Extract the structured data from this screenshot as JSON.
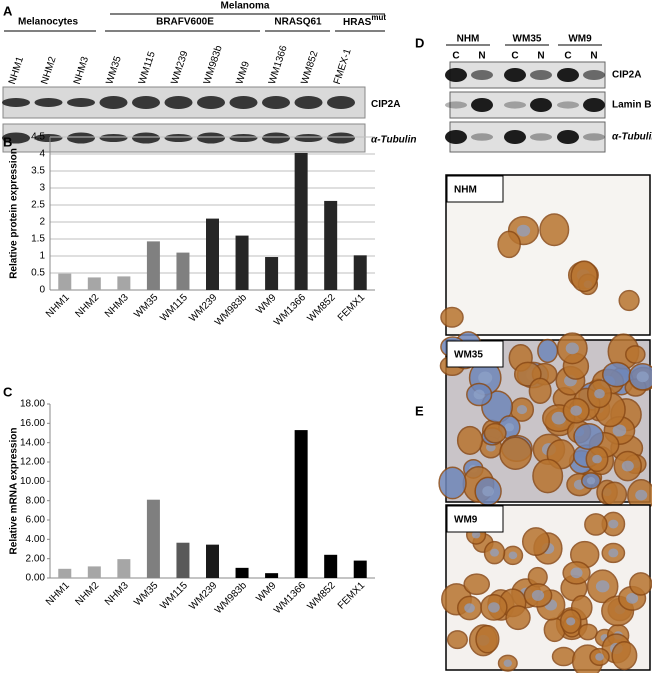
{
  "panel_a": {
    "letter": "A",
    "header": "Melanoma",
    "groups": [
      "Melanocytes",
      "BRAFV600E",
      "NRASQ61"
    ],
    "group_hras": {
      "text": "HRAS",
      "sup": "mut"
    },
    "lanes": [
      "NHM1",
      "NHM2",
      "NHM3",
      "WM35",
      "WM115",
      "WM239",
      "WM983b",
      "WM9",
      "WM1366",
      "WM852",
      "FMEX-1"
    ],
    "blots": [
      "CIP2A",
      "α-Tubulin"
    ]
  },
  "panel_d": {
    "letter": "D",
    "groups": [
      "NHM",
      "WM35",
      "WM9"
    ],
    "fractions": [
      "C",
      "N"
    ],
    "blots": [
      "CIP2A",
      "Lamin B",
      "α-Tubulin"
    ]
  },
  "panel_e": {
    "letter": "E",
    "images": [
      "NHM",
      "WM35",
      "WM9"
    ]
  },
  "chart_data": [
    {
      "type": "bar",
      "letter": "B",
      "y_label": "Relative protein expression",
      "categories": [
        "NHM1",
        "NHM2",
        "NHM3",
        "WM35",
        "WM115",
        "WM239",
        "WM983b",
        "WM9",
        "WM1366",
        "WM852",
        "FEMX1"
      ],
      "values": [
        0.48,
        0.37,
        0.4,
        1.43,
        1.1,
        2.1,
        1.6,
        0.97,
        4.03,
        2.62,
        1.02
      ],
      "colors": [
        "#a6a6a6",
        "#a6a6a6",
        "#a6a6a6",
        "#808080",
        "#808080",
        "#262626",
        "#262626",
        "#262626",
        "#262626",
        "#262626",
        "#262626"
      ],
      "ylim": [
        0,
        4.5
      ],
      "yticks": [
        0,
        0.5,
        1,
        1.5,
        2,
        2.5,
        3,
        3.5,
        4,
        4.5
      ],
      "grid": true
    },
    {
      "type": "bar",
      "letter": "C",
      "y_label": "Relative mRNA expression",
      "categories": [
        "NHM1",
        "NHM2",
        "NHM3",
        "WM35",
        "WM115",
        "WM239",
        "WM983b",
        "WM9",
        "WM1366",
        "WM852",
        "FEMX1"
      ],
      "values": [
        0.95,
        1.2,
        1.95,
        8.1,
        3.65,
        3.45,
        1.05,
        0.5,
        15.3,
        2.4,
        1.8
      ],
      "colors": [
        "#a6a6a6",
        "#a6a6a6",
        "#a6a6a6",
        "#7f7f7f",
        "#595959",
        "#1a1a1a",
        "#000000",
        "#000000",
        "#000000",
        "#000000",
        "#000000"
      ],
      "ylim": [
        0,
        18
      ],
      "yticks": [
        {
          "value": 0,
          "label": "0.00"
        },
        {
          "value": 2,
          "label": "2.00"
        },
        {
          "value": 4,
          "label": "4.00"
        },
        {
          "value": 6,
          "label": "6.00"
        },
        {
          "value": 8,
          "label": "8.00"
        },
        {
          "value": 10,
          "label": "10.00"
        },
        {
          "value": 12,
          "label": "12.00"
        },
        {
          "value": 14,
          "label": "14.00"
        },
        {
          "value": 16,
          "label": "16.00"
        },
        {
          "value": 18,
          "label": "18.00"
        }
      ],
      "grid": false
    }
  ]
}
